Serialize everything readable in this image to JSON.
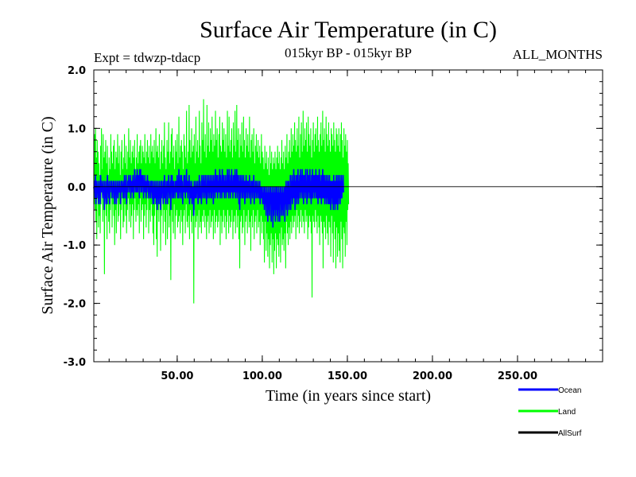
{
  "chart_data": {
    "type": "line",
    "title": "Surface Air Temperature (in C)",
    "subtitle_left": "Expt = tdwzp-tdacp",
    "subtitle_center": "015kyr BP - 015kyr BP",
    "subtitle_right": "ALL_MONTHS",
    "xlabel": "Time (in years since start)",
    "ylabel": "Surface Air Temperature (in C)",
    "xlim": [
      1,
      300
    ],
    "ylim": [
      -3.0,
      2.0
    ],
    "xticks": [
      50,
      100,
      150,
      200,
      250
    ],
    "xtick_labels": [
      "50.00",
      "100.00",
      "150.00",
      "200.00",
      "250.00"
    ],
    "yticks": [
      2.0,
      1.0,
      0.0,
      -1.0,
      -2.0,
      -3.0
    ],
    "ytick_labels": [
      "2.0",
      "1.0",
      "0.0",
      "-1.0",
      "-2.0",
      "-3.0"
    ],
    "grid": false,
    "zero_line": true,
    "legend_position": "bottom-right",
    "series": [
      {
        "name": "Land",
        "color": "#00ff00",
        "x_step": 0.25,
        "values": [
          0.2,
          -0.3,
          0.9,
          -0.4,
          1.0,
          -0.6,
          0.5,
          -0.9,
          0.8,
          -0.2,
          0.6,
          -0.7,
          0.4,
          -0.5,
          0.2,
          -0.8,
          0.7,
          -0.3,
          1.0,
          -0.1,
          0.3,
          -0.6,
          0.9,
          -0.4,
          0.5,
          -1.5,
          0.6,
          -0.2,
          0.8,
          -0.5,
          0.4,
          -0.9,
          0.7,
          -0.3,
          0.2,
          -0.6,
          0.5,
          -0.8,
          0.3,
          -0.4,
          0.9,
          -0.2,
          0.6,
          -0.7,
          0.4,
          -0.3,
          0.7,
          -0.5,
          0.8,
          -1.0,
          0.3,
          -0.4,
          0.6,
          -0.8,
          0.5,
          -0.2,
          0.9,
          -0.6,
          0.4,
          -0.5,
          0.7,
          -0.3,
          0.2,
          -0.9,
          0.6,
          -0.4,
          0.8,
          -0.2,
          0.3,
          -0.7,
          0.5,
          -0.6,
          0.9,
          -0.3,
          0.4,
          -0.5,
          0.7,
          -0.8,
          0.3,
          -0.4,
          0.6,
          -0.2,
          1.0,
          -0.6,
          0.5,
          -0.3,
          0.8,
          -0.7,
          0.4,
          -0.5,
          0.6,
          -0.3,
          0.7,
          -0.9,
          0.5,
          -0.4,
          0.8,
          -0.2,
          0.3,
          -0.6,
          0.5,
          -0.4,
          0.9,
          -0.5,
          0.4,
          -0.3,
          0.6,
          -0.8,
          0.7,
          -0.2,
          0.8,
          -0.6,
          0.4,
          -0.4,
          0.7,
          -0.3,
          0.6,
          -0.9,
          0.5,
          -0.5,
          0.9,
          -0.3,
          0.4,
          -0.7,
          0.6,
          -0.4,
          0.8,
          -0.2,
          0.5,
          -0.8,
          0.7,
          -0.4,
          0.4,
          -0.6,
          0.9,
          -0.3,
          0.6,
          -0.5,
          0.7,
          -0.8,
          0.5,
          -1.0,
          0.8,
          -0.5,
          0.4,
          -0.3,
          1.0,
          -0.9,
          0.6,
          -1.2,
          0.7,
          -0.4,
          0.5,
          -0.6,
          0.9,
          -0.3,
          0.3,
          -1.1,
          0.6,
          -0.5,
          0.8,
          -0.2,
          0.4,
          -0.8,
          0.7,
          -0.4,
          1.1,
          -0.6,
          0.5,
          -1.0,
          0.3,
          -0.4,
          0.8,
          -0.9,
          0.6,
          -0.3,
          1.1,
          -0.7,
          0.4,
          -0.5,
          0.6,
          -1.6,
          0.9,
          -0.4,
          1.0,
          -0.6,
          0.5,
          -0.8,
          0.7,
          -0.3,
          0.3,
          -0.9,
          0.8,
          -0.5,
          0.6,
          -0.4,
          0.9,
          -0.7,
          0.4,
          -0.6,
          1.2,
          -0.5,
          0.5,
          -0.8,
          0.7,
          -0.4,
          0.8,
          -0.6,
          0.6,
          -1.0,
          0.3,
          -0.5,
          0.9,
          -0.4,
          0.7,
          -0.8,
          0.5,
          -0.3,
          1.3,
          -0.6,
          0.4,
          -0.7,
          0.6,
          -0.5,
          1.4,
          -0.9,
          0.8,
          -0.4,
          0.5,
          -0.6,
          1.0,
          -0.8,
          0.6,
          -0.5,
          0.7,
          -2.0,
          0.9,
          -0.4,
          0.4,
          -0.7,
          1.2,
          -0.6,
          0.6,
          -0.5,
          0.8,
          -0.9,
          0.5,
          -0.4,
          1.3,
          -0.7,
          0.7,
          -0.6,
          0.4,
          -0.8,
          1.1,
          -0.5,
          0.8,
          -0.6,
          1.5,
          -0.4,
          0.6,
          -0.7,
          0.9,
          -0.5,
          0.5,
          -0.9,
          1.4,
          -0.6,
          0.7,
          -0.5,
          1.1,
          -0.8,
          0.6,
          -0.4,
          1.0,
          -0.7,
          0.8,
          -0.6,
          1.2,
          -0.5,
          0.6,
          -0.9,
          0.9,
          -0.4,
          0.7,
          -0.8,
          1.3,
          -0.6,
          0.8,
          -0.5,
          1.0,
          -0.7,
          0.5,
          -0.6,
          0.9,
          -0.4,
          1.2,
          -1.0,
          0.7,
          -0.5,
          0.6,
          -0.8,
          1.1,
          -0.6,
          0.8,
          -0.4,
          1.0,
          -0.7,
          0.6,
          -0.5,
          0.9,
          -0.9,
          0.5,
          -0.6,
          1.3,
          -0.4,
          0.7,
          -0.8,
          1.2,
          -0.5,
          0.6,
          -0.7,
          0.8,
          -0.6,
          1.0,
          -0.4,
          0.5,
          -0.9,
          1.1,
          -0.6,
          0.7,
          -0.5,
          1.3,
          -0.8,
          0.6,
          -0.4,
          1.4,
          -0.7,
          0.8,
          -0.5,
          1.0,
          -0.9,
          0.5,
          -1.4,
          0.9,
          -0.6,
          0.7,
          -0.5,
          1.1,
          -0.8,
          0.6,
          -0.7,
          1.2,
          -0.4,
          0.8,
          -1.0,
          0.5,
          -0.6,
          1.0,
          -0.5,
          0.7,
          -0.8,
          0.9,
          -0.4,
          0.6,
          -0.7,
          1.2,
          -0.6,
          0.5,
          -1.1,
          0.8,
          -0.5,
          0.9,
          -0.7,
          0.6,
          -0.4,
          1.0,
          -0.9,
          0.4,
          -0.6,
          0.7,
          -0.5,
          0.9,
          -0.8,
          0.6,
          -0.4,
          0.8,
          -0.7,
          0.5,
          -0.6,
          0.7,
          -1.0,
          0.4,
          -0.5,
          0.9,
          -0.8,
          0.6,
          -0.6,
          0.5,
          -0.9,
          0.3,
          -1.3,
          0.7,
          -0.6,
          0.4,
          -1.1,
          0.6,
          -0.8,
          0.3,
          -1.2,
          0.5,
          -0.9,
          0.2,
          -1.4,
          0.7,
          -1.0,
          0.4,
          -0.8,
          0.6,
          -1.3,
          0.3,
          -0.9,
          0.5,
          -1.5,
          0.4,
          -1.1,
          0.6,
          -0.8,
          0.3,
          -1.4,
          0.5,
          -0.9,
          0.7,
          -1.0,
          0.4,
          -1.2,
          0.6,
          -0.8,
          0.3,
          -1.3,
          0.5,
          -0.7,
          0.8,
          -1.0,
          0.4,
          -0.9,
          0.6,
          -1.1,
          0.3,
          -0.8,
          0.7,
          -1.4,
          0.5,
          -0.6,
          0.9,
          -0.8,
          0.4,
          -1.0,
          0.6,
          -0.7,
          0.8,
          -0.9,
          0.5,
          -0.6,
          1.0,
          -0.8,
          0.6,
          -0.5,
          0.9,
          -0.7,
          0.7,
          -0.6,
          1.1,
          -0.5,
          0.8,
          -0.9,
          0.6,
          -0.4,
          1.0,
          -0.7,
          0.7,
          -0.5,
          1.2,
          -0.8,
          0.5,
          -0.6,
          0.9,
          -0.4,
          1.1,
          -0.7,
          0.6,
          -0.5,
          1.3,
          -0.6,
          0.7,
          -0.8,
          1.0,
          -0.4,
          0.8,
          -0.6,
          1.1,
          -0.5,
          0.6,
          -0.9,
          1.2,
          -0.7,
          0.9,
          -0.5,
          0.7,
          -0.6,
          1.0,
          -0.8,
          0.5,
          -1.9,
          0.8,
          -0.5,
          1.1,
          -0.6,
          0.6,
          -0.7,
          0.9,
          -0.4,
          1.0,
          -0.6,
          0.7,
          -0.8,
          1.2,
          -0.5,
          0.8,
          -0.7,
          0.6,
          -1.0,
          0.9,
          -0.5,
          1.1,
          -0.6,
          0.7,
          -0.8,
          1.3,
          -1.4,
          0.8,
          -0.6,
          1.0,
          -0.7,
          0.6,
          -0.9,
          1.2,
          -0.5,
          0.9,
          -0.8,
          0.7,
          -1.0,
          1.1,
          -0.6,
          0.8,
          -0.7,
          0.6,
          -1.2,
          1.0,
          -0.5,
          0.9,
          -0.8,
          0.7,
          -1.3,
          1.1,
          -0.6,
          0.8,
          -0.9,
          0.6,
          -1.4,
          1.0,
          -0.7,
          0.9,
          -1.2,
          0.7,
          -0.8,
          1.0,
          -1.1,
          0.6,
          -1.3,
          0.9,
          -0.6,
          1.1,
          -0.9,
          0.8,
          -1.4,
          0.5,
          -0.7,
          1.0,
          -0.8,
          0.7,
          -1.2,
          0.9,
          -0.6,
          0.6,
          -1.0,
          0.8,
          -0.4,
          0.4,
          -0.3
        ]
      },
      {
        "name": "Ocean",
        "color": "#0000ff",
        "x_step": 0.25,
        "values": [
          0.0,
          -0.1,
          0.1,
          -0.2,
          0.2,
          -0.3,
          0.1,
          -0.2,
          0.0,
          -0.1,
          0.1,
          -0.3,
          0.0,
          -0.2,
          0.1,
          -0.3,
          0.2,
          -0.1,
          0.1,
          0.0,
          0.0,
          -0.2,
          0.1,
          -0.1,
          0.0,
          -0.4,
          0.1,
          -0.2,
          0.0,
          -0.3,
          0.1,
          -0.3,
          0.2,
          -0.1,
          0.0,
          -0.2,
          0.1,
          -0.3,
          0.0,
          -0.1,
          0.1,
          0.0,
          0.1,
          -0.2,
          0.0,
          -0.1,
          0.1,
          -0.2,
          0.1,
          -0.3,
          0.0,
          -0.1,
          0.1,
          -0.3,
          0.0,
          -0.1,
          0.1,
          -0.2,
          0.0,
          -0.1,
          0.1,
          -0.1,
          0.0,
          -0.3,
          0.1,
          -0.1,
          0.1,
          0.0,
          0.0,
          -0.2,
          0.1,
          -0.2,
          0.2,
          -0.1,
          0.1,
          -0.2,
          0.2,
          -0.3,
          0.0,
          -0.1,
          0.1,
          0.0,
          0.2,
          -0.1,
          0.1,
          0.0,
          0.2,
          -0.2,
          0.1,
          -0.1,
          0.1,
          -0.1,
          0.2,
          -0.2,
          0.1,
          -0.1,
          0.3,
          0.0,
          0.1,
          -0.1,
          0.2,
          -0.1,
          0.3,
          -0.1,
          0.2,
          0.0,
          0.2,
          -0.2,
          0.3,
          0.0,
          0.3,
          -0.1,
          0.2,
          -0.1,
          0.2,
          0.0,
          0.2,
          -0.2,
          0.1,
          -0.1,
          0.2,
          -0.1,
          0.1,
          -0.2,
          0.1,
          -0.1,
          0.2,
          0.0,
          0.1,
          -0.2,
          0.1,
          -0.1,
          0.0,
          -0.2,
          0.1,
          -0.1,
          0.1,
          -0.2,
          0.1,
          -0.3,
          0.0,
          -0.3,
          0.1,
          -0.2,
          0.0,
          -0.2,
          0.1,
          -0.3,
          0.0,
          -0.4,
          0.1,
          -0.2,
          0.0,
          -0.3,
          0.1,
          -0.2,
          0.0,
          -0.4,
          0.1,
          -0.2,
          0.1,
          -0.1,
          0.0,
          -0.3,
          0.1,
          -0.2,
          0.2,
          -0.2,
          0.1,
          -0.3,
          0.0,
          -0.1,
          0.1,
          -0.3,
          0.1,
          -0.1,
          0.2,
          -0.2,
          0.0,
          -0.1,
          0.1,
          -0.4,
          0.2,
          -0.1,
          0.2,
          -0.2,
          0.1,
          -0.2,
          0.1,
          -0.1,
          0.0,
          -0.2,
          0.1,
          -0.1,
          0.1,
          -0.1,
          0.2,
          -0.2,
          0.1,
          -0.2,
          0.3,
          -0.1,
          0.1,
          -0.2,
          0.2,
          -0.1,
          0.2,
          -0.2,
          0.1,
          -0.3,
          0.0,
          -0.1,
          0.2,
          -0.1,
          0.2,
          -0.2,
          0.1,
          -0.1,
          0.3,
          -0.1,
          0.1,
          -0.2,
          0.1,
          -0.1,
          0.2,
          -0.3,
          0.1,
          -0.2,
          0.0,
          -0.2,
          0.1,
          -0.3,
          0.0,
          -0.2,
          0.0,
          -0.5,
          0.1,
          -0.2,
          0.0,
          -0.2,
          0.1,
          -0.2,
          0.0,
          -0.1,
          0.1,
          -0.3,
          0.0,
          -0.2,
          0.2,
          -0.2,
          0.1,
          -0.2,
          0.0,
          -0.3,
          0.2,
          -0.1,
          0.1,
          -0.2,
          0.2,
          -0.1,
          0.1,
          -0.2,
          0.2,
          -0.1,
          0.0,
          -0.3,
          0.2,
          -0.2,
          0.1,
          -0.1,
          0.2,
          -0.2,
          0.1,
          -0.1,
          0.2,
          -0.2,
          0.1,
          -0.2,
          0.2,
          -0.1,
          0.1,
          -0.3,
          0.2,
          -0.1,
          0.1,
          -0.2,
          0.3,
          -0.1,
          0.2,
          -0.1,
          0.2,
          -0.2,
          0.1,
          -0.1,
          0.2,
          -0.1,
          0.3,
          -0.2,
          0.2,
          -0.1,
          0.1,
          -0.2,
          0.3,
          -0.1,
          0.2,
          -0.1,
          0.2,
          -0.2,
          0.1,
          -0.1,
          0.2,
          -0.2,
          0.1,
          -0.1,
          0.3,
          -0.1,
          0.2,
          -0.2,
          0.3,
          -0.1,
          0.1,
          -0.2,
          0.2,
          -0.1,
          0.3,
          -0.1,
          0.1,
          -0.2,
          0.2,
          -0.1,
          0.2,
          -0.1,
          0.3,
          -0.2,
          0.2,
          -0.1,
          0.3,
          -0.2,
          0.2,
          -0.1,
          0.2,
          -0.3,
          0.1,
          -0.4,
          0.2,
          -0.2,
          0.1,
          -0.1,
          0.2,
          -0.2,
          0.1,
          -0.2,
          0.2,
          -0.1,
          0.1,
          -0.3,
          0.1,
          -0.2,
          0.2,
          -0.1,
          0.1,
          -0.2,
          0.1,
          -0.1,
          0.1,
          -0.2,
          0.2,
          -0.1,
          0.0,
          -0.3,
          0.1,
          -0.1,
          0.1,
          -0.2,
          0.1,
          -0.1,
          0.2,
          -0.3,
          0.0,
          -0.2,
          0.1,
          -0.1,
          0.1,
          -0.2,
          0.0,
          -0.1,
          0.1,
          -0.2,
          0.0,
          -0.2,
          0.1,
          -0.3,
          0.0,
          -0.2,
          0.0,
          -0.2,
          0.0,
          -0.3,
          -0.1,
          -0.3,
          0.0,
          -0.4,
          0.0,
          -0.3,
          -0.1,
          -0.5,
          0.0,
          -0.3,
          -0.1,
          -0.6,
          0.0,
          -0.4,
          -0.1,
          -0.5,
          0.0,
          -0.3,
          0.0,
          -0.6,
          -0.1,
          -0.4,
          0.0,
          -0.7,
          -0.1,
          -0.5,
          0.0,
          -0.4,
          -0.1,
          -0.6,
          0.0,
          -0.4,
          0.0,
          -0.5,
          -0.1,
          -0.6,
          0.0,
          -0.4,
          -0.1,
          -0.6,
          0.0,
          -0.3,
          0.0,
          -0.5,
          -0.1,
          -0.4,
          0.0,
          -0.5,
          -0.1,
          -0.3,
          0.0,
          -0.6,
          0.0,
          -0.3,
          0.1,
          -0.4,
          0.0,
          -0.5,
          0.1,
          -0.3,
          0.1,
          -0.4,
          0.0,
          -0.3,
          0.2,
          -0.4,
          0.1,
          -0.2,
          0.2,
          -0.3,
          0.1,
          -0.2,
          0.3,
          -0.2,
          0.2,
          -0.4,
          0.1,
          -0.2,
          0.2,
          -0.3,
          0.2,
          -0.2,
          0.3,
          -0.3,
          0.1,
          -0.2,
          0.2,
          -0.1,
          0.3,
          -0.2,
          0.2,
          -0.1,
          0.3,
          -0.2,
          0.2,
          -0.3,
          0.2,
          -0.1,
          0.2,
          -0.2,
          0.3,
          -0.1,
          0.1,
          -0.3,
          0.3,
          -0.2,
          0.2,
          -0.1,
          0.2,
          -0.2,
          0.3,
          -0.2,
          0.1,
          -0.3,
          0.2,
          -0.2,
          0.3,
          -0.2,
          0.2,
          -0.1,
          0.2,
          -0.2,
          0.2,
          -0.1,
          0.3,
          -0.2,
          0.2,
          -0.2,
          0.2,
          -0.3,
          0.2,
          -0.2,
          0.3,
          -0.2,
          0.2,
          -0.2,
          0.1,
          -0.3,
          0.2,
          -0.2,
          0.3,
          -0.2,
          0.2,
          -0.2,
          0.2,
          -0.3,
          0.1,
          -0.2,
          0.2,
          -0.3,
          0.1,
          -0.2,
          0.2,
          -0.3,
          0.1,
          -0.3,
          0.2,
          -0.3,
          0.1,
          -0.4,
          0.1,
          -0.2,
          0.1,
          -0.3,
          0.1,
          -0.4,
          0.2,
          -0.3,
          0.1,
          -0.4,
          0.1,
          -0.3,
          0.2,
          -0.3,
          0.1,
          -0.4,
          0.2,
          -0.3,
          0.1,
          -0.2,
          0.2,
          -0.3,
          0.1,
          -0.2,
          0.2,
          -0.2,
          0.1,
          -0.1,
          0.2,
          -0.1
        ]
      },
      {
        "name": "AllSurf",
        "color": "#000000",
        "values": []
      }
    ]
  }
}
